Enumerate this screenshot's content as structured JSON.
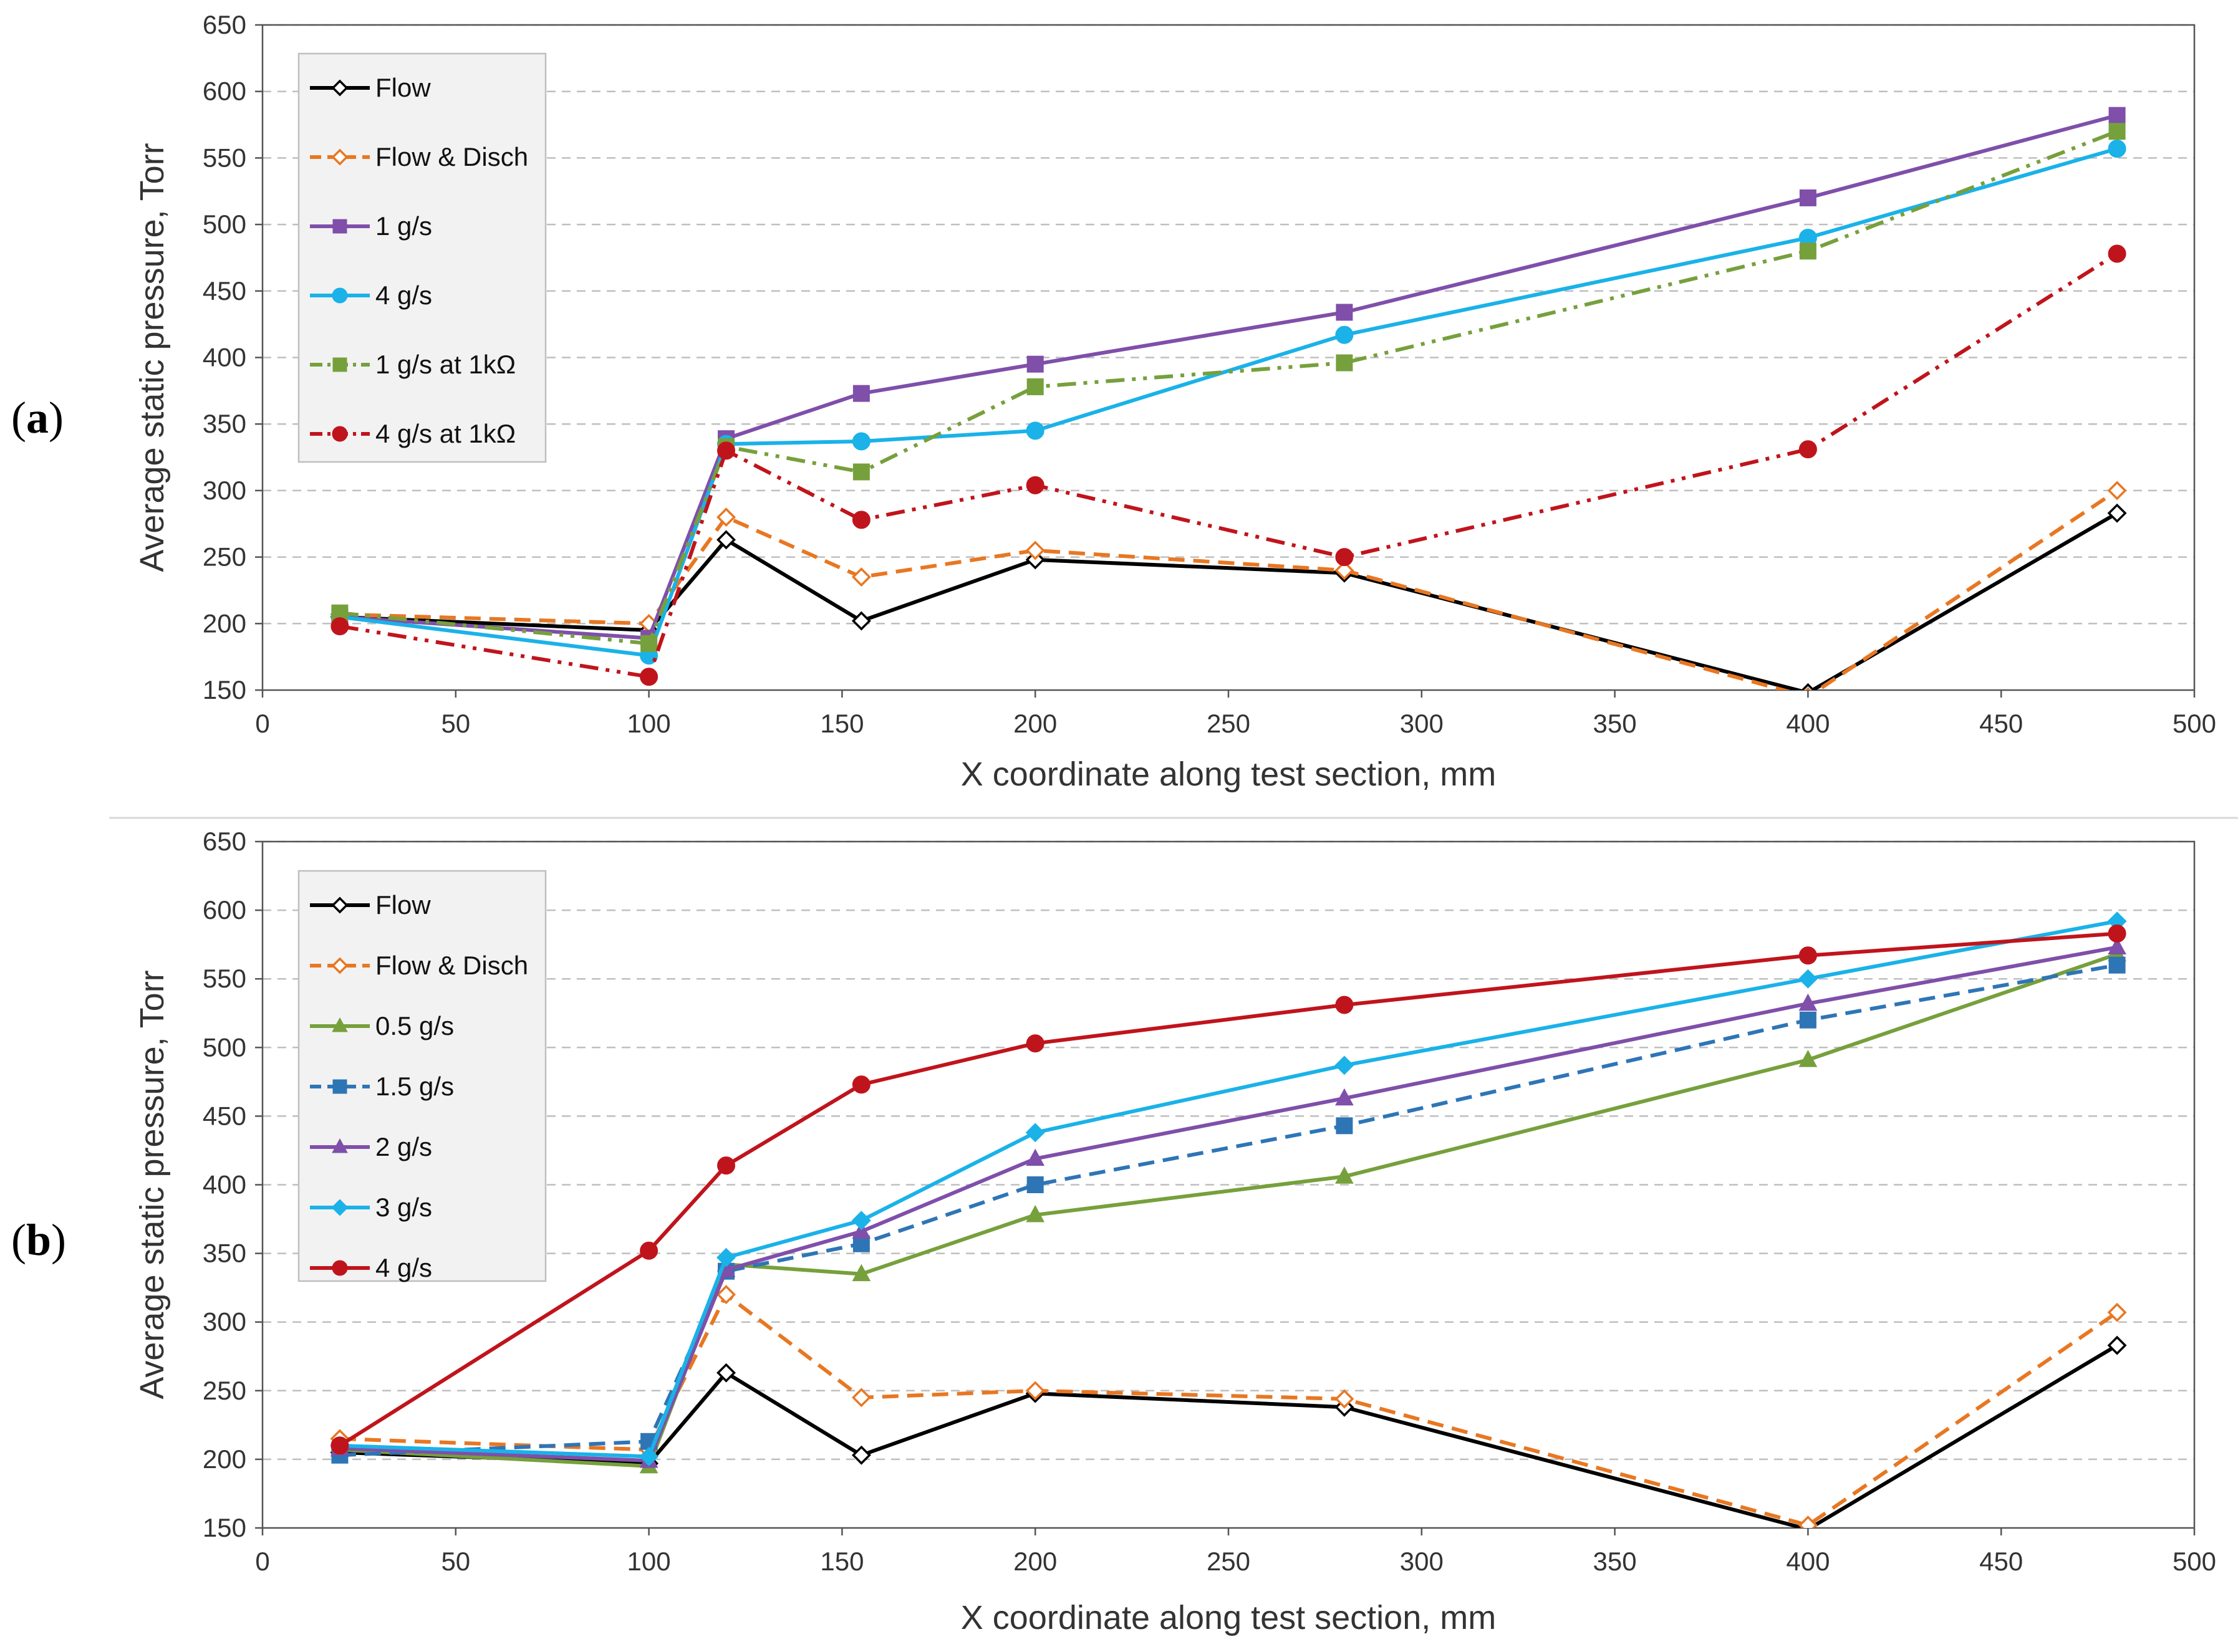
{
  "panels": [
    {
      "label_open": "(",
      "label_letter": "a",
      "label_close": ")"
    },
    {
      "label_open": "(",
      "label_letter": "b",
      "label_close": ")"
    }
  ],
  "chart_data": [
    {
      "type": "line",
      "panel": "a",
      "xlabel": "X coordinate along test section, mm",
      "ylabel": "Average static pressure, Torr",
      "xlim": [
        0,
        500
      ],
      "ylim": [
        150,
        650
      ],
      "xticks": [
        0,
        50,
        100,
        150,
        200,
        250,
        300,
        350,
        400,
        450,
        500
      ],
      "yticks": [
        150,
        200,
        250,
        300,
        350,
        400,
        450,
        500,
        550,
        600,
        650
      ],
      "grid": "horizontal dashed",
      "legend": "top-left",
      "x": [
        20,
        100,
        120,
        155,
        200,
        280,
        400,
        480
      ],
      "series": [
        {
          "name": "Flow",
          "color": "#000000",
          "dash": "solid",
          "marker": "diamond-open",
          "values": [
            205,
            195,
            263,
            202,
            248,
            238,
            148,
            283
          ]
        },
        {
          "name": "Flow & Disch",
          "color": "#E87722",
          "dash": "dashed",
          "marker": "diamond-open",
          "values": [
            207,
            200,
            280,
            235,
            255,
            240,
            145,
            300
          ]
        },
        {
          "name": "1 g/s",
          "color": "#7F4FAA",
          "dash": "solid",
          "marker": "square",
          "values": [
            205,
            189,
            339,
            373,
            395,
            434,
            520,
            582
          ]
        },
        {
          "name": "4 g/s",
          "color": "#1AB2E8",
          "dash": "solid",
          "marker": "circle",
          "values": [
            205,
            176,
            335,
            337,
            345,
            417,
            490,
            557
          ]
        },
        {
          "name": "1 g/s at 1kΩ",
          "color": "#76A03C",
          "dash": "dashdotdot",
          "marker": "square",
          "values": [
            208,
            185,
            333,
            314,
            378,
            396,
            480,
            570
          ]
        },
        {
          "name": "4 g/s at 1kΩ",
          "color": "#C0141C",
          "dash": "dashdotdot",
          "marker": "circle",
          "values": [
            198,
            160,
            330,
            278,
            304,
            250,
            331,
            478
          ]
        }
      ]
    },
    {
      "type": "line",
      "panel": "b",
      "xlabel": "X coordinate along test section, mm",
      "ylabel": "Average static pressure, Torr",
      "xlim": [
        0,
        500
      ],
      "ylim": [
        150,
        650
      ],
      "xticks": [
        0,
        50,
        100,
        150,
        200,
        250,
        300,
        350,
        400,
        450,
        500
      ],
      "yticks": [
        150,
        200,
        250,
        300,
        350,
        400,
        450,
        500,
        550,
        600,
        650
      ],
      "grid": "horizontal dashed",
      "legend": "top-left",
      "x": [
        20,
        100,
        120,
        155,
        200,
        280,
        400,
        480
      ],
      "series": [
        {
          "name": "Flow",
          "color": "#000000",
          "dash": "solid",
          "marker": "diamond-open",
          "values": [
            205,
            197,
            263,
            203,
            248,
            238,
            149,
            283
          ]
        },
        {
          "name": "Flow & Disch",
          "color": "#E87722",
          "dash": "dashed",
          "marker": "diamond-open",
          "values": [
            215,
            207,
            320,
            245,
            250,
            244,
            152,
            307
          ]
        },
        {
          "name": "0.5 g/s",
          "color": "#76A03C",
          "dash": "solid",
          "marker": "triangle",
          "values": [
            207,
            195,
            342,
            335,
            378,
            406,
            491,
            568
          ]
        },
        {
          "name": "1.5 g/s",
          "color": "#2E75B6",
          "dash": "dashed",
          "marker": "square",
          "values": [
            203,
            213,
            337,
            357,
            400,
            443,
            520,
            560
          ]
        },
        {
          "name": "2 g/s",
          "color": "#7F4FAA",
          "dash": "solid",
          "marker": "triangle",
          "values": [
            208,
            199,
            338,
            366,
            419,
            463,
            532,
            573
          ]
        },
        {
          "name": "3 g/s",
          "color": "#1AB2E8",
          "dash": "solid",
          "marker": "diamond",
          "values": [
            210,
            202,
            347,
            374,
            438,
            487,
            550,
            592
          ]
        },
        {
          "name": "4 g/s",
          "color": "#C0141C",
          "dash": "solid",
          "marker": "circle",
          "values": [
            210,
            352,
            414,
            473,
            503,
            531,
            567,
            583
          ]
        }
      ]
    }
  ]
}
